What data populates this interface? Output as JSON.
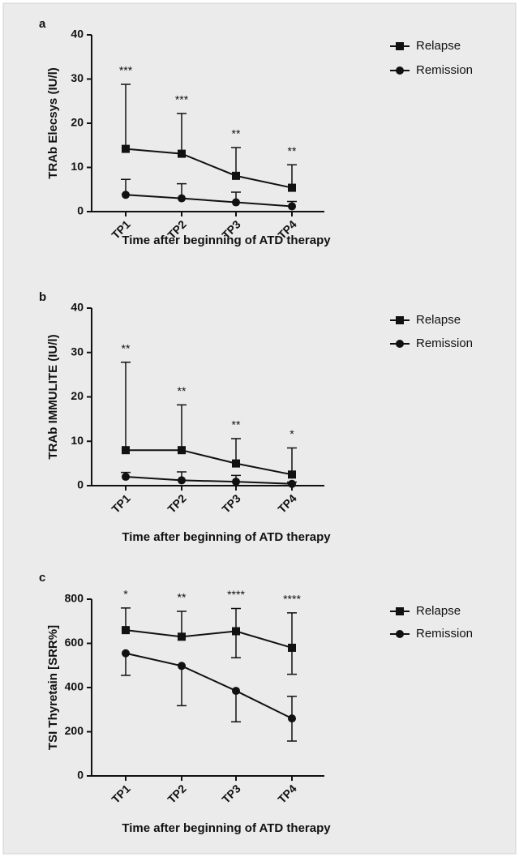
{
  "chart_data": [
    {
      "type": "line",
      "panel_label": "a",
      "ylabel": "TRAb Elecsys  (IU/l)",
      "xlabel": "Time after beginning of ATD therapy",
      "categories": [
        "TP1",
        "TP2",
        "TP3",
        "TP4"
      ],
      "ylim": [
        0,
        40
      ],
      "yticks": [
        0,
        10,
        20,
        30,
        40
      ],
      "annotations": [
        "***",
        "***",
        "**",
        "**"
      ],
      "series": [
        {
          "name": "Relapse",
          "color": "#111111",
          "marker": "square",
          "values": [
            14.2,
            13.1,
            8.1,
            5.4
          ],
          "error_high": [
            28.8,
            22.2,
            14.5,
            10.6
          ],
          "error_low": [
            null,
            null,
            null,
            null
          ]
        },
        {
          "name": "Remission",
          "color": "#111111",
          "marker": "circle",
          "values": [
            3.8,
            3.0,
            2.1,
            1.2
          ],
          "error_high": [
            7.3,
            6.3,
            4.4,
            2.3
          ],
          "error_low": [
            null,
            null,
            null,
            null
          ]
        }
      ]
    },
    {
      "type": "line",
      "panel_label": "b",
      "ylabel": "TRAb IMMULITE  (IU/l)",
      "xlabel": "Time after beginning of ATD therapy",
      "categories": [
        "TP1",
        "TP2",
        "TP3",
        "TP4"
      ],
      "ylim": [
        0,
        40
      ],
      "yticks": [
        0,
        10,
        20,
        30,
        40
      ],
      "annotations": [
        "**",
        "**",
        "**",
        "*"
      ],
      "series": [
        {
          "name": "Relapse",
          "color": "#111111",
          "marker": "square",
          "values": [
            8.0,
            8.0,
            5.0,
            2.5
          ],
          "error_high": [
            27.8,
            18.2,
            10.6,
            8.5
          ],
          "error_low": [
            null,
            null,
            null,
            null
          ]
        },
        {
          "name": "Remission",
          "color": "#111111",
          "marker": "circle",
          "values": [
            2.0,
            1.2,
            0.9,
            0.4
          ],
          "error_high": [
            3.0,
            3.1,
            2.3,
            0.8
          ],
          "error_low": [
            null,
            null,
            null,
            null
          ]
        }
      ]
    },
    {
      "type": "line",
      "panel_label": "c",
      "ylabel": "TSI Thyretain [SRR%]",
      "xlabel": "Time after beginning of ATD therapy",
      "categories": [
        "TP1",
        "TP2",
        "TP3",
        "TP4"
      ],
      "ylim": [
        0,
        800
      ],
      "yticks": [
        0,
        200,
        400,
        600,
        800
      ],
      "annotations": [
        "*",
        "**",
        "****",
        "****"
      ],
      "series": [
        {
          "name": "Relapse",
          "color": "#111111",
          "marker": "square",
          "values": [
            660,
            630,
            655,
            580
          ],
          "error_high": [
            760,
            745,
            758,
            738
          ],
          "error_low": [
            null,
            null,
            535,
            460
          ]
        },
        {
          "name": "Remission",
          "color": "#111111",
          "marker": "circle",
          "values": [
            555,
            498,
            385,
            260
          ],
          "error_high": [
            null,
            null,
            null,
            360
          ],
          "error_low": [
            455,
            318,
            245,
            158
          ]
        }
      ]
    }
  ]
}
